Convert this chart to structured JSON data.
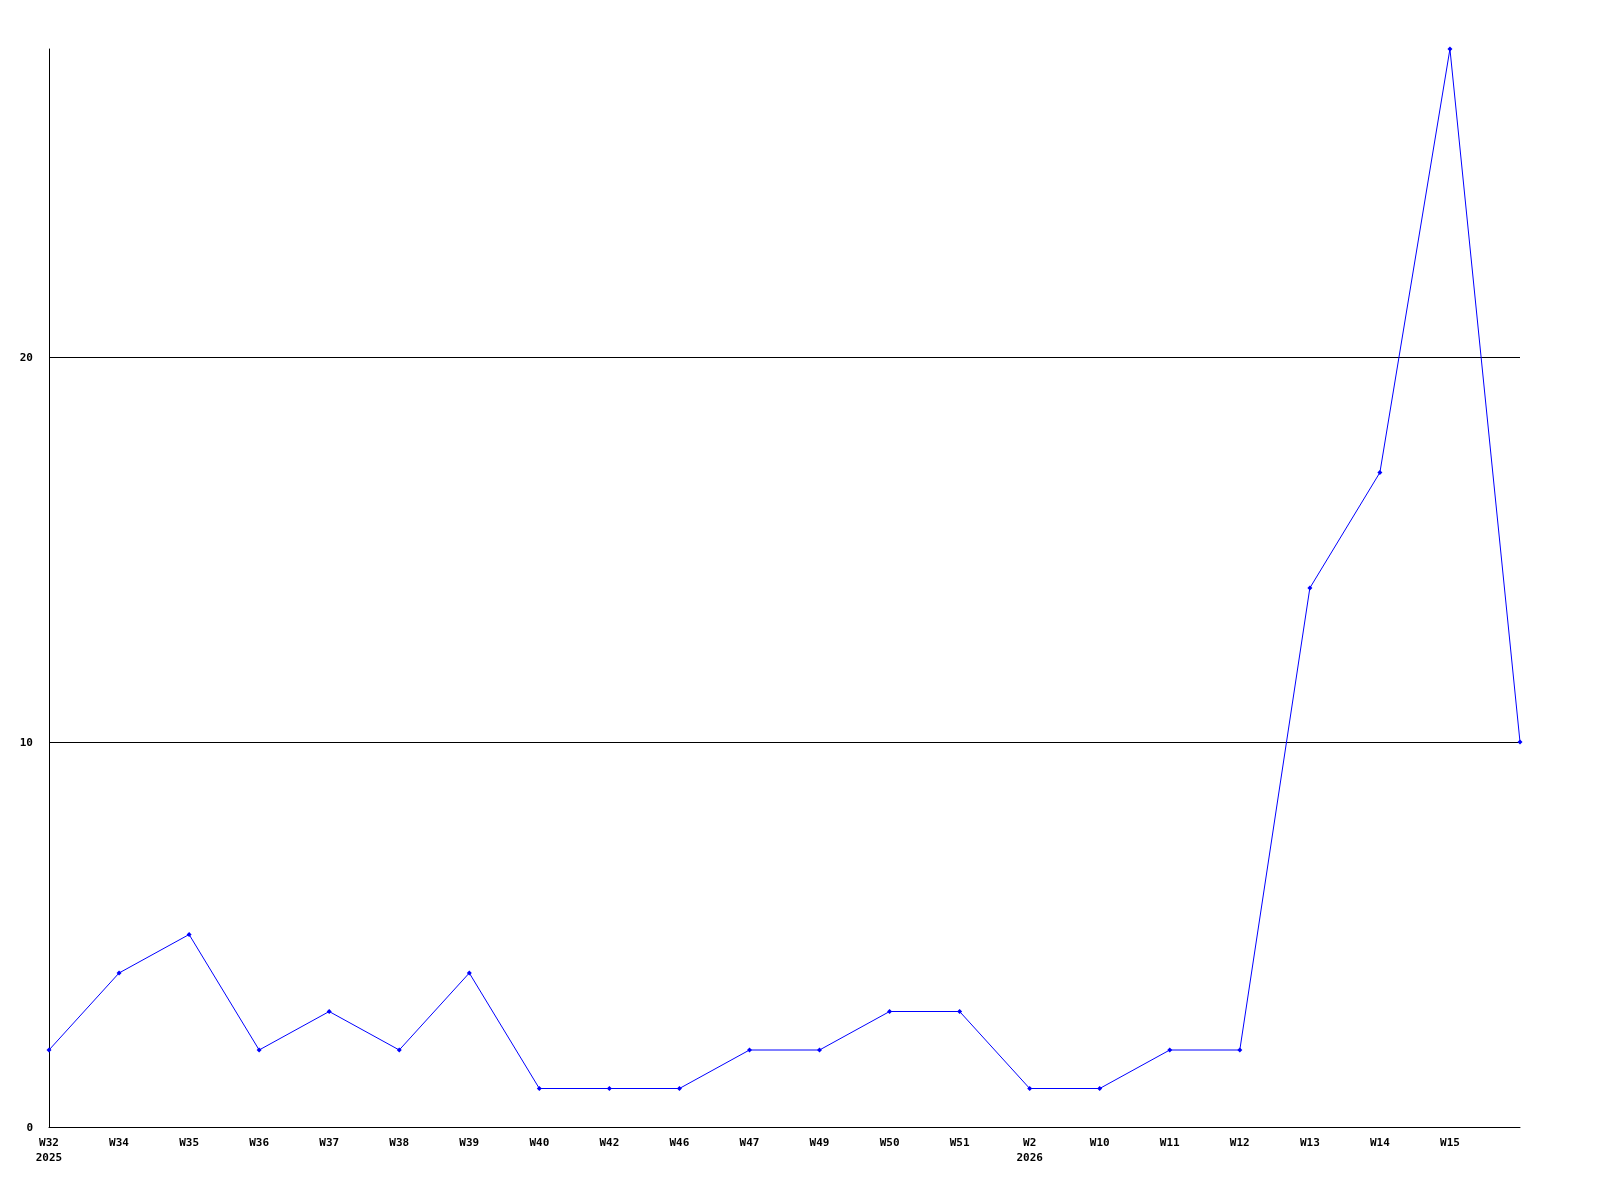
{
  "chart_data": {
    "type": "line",
    "categories": [
      "W32\n2025",
      "W34",
      "W35",
      "W36",
      "W37",
      "W38",
      "W39",
      "W40",
      "W42",
      "W46",
      "W47",
      "W49",
      "W50",
      "W51",
      "W2\n2026",
      "W10",
      "W11",
      "W12",
      "W13",
      "W14",
      "W15",
      null
    ],
    "series": [
      {
        "color": "#0000ff",
        "values": [
          2,
          4,
          5,
          2,
          3,
          2,
          4,
          1,
          1,
          1,
          2,
          2,
          3,
          3,
          1,
          1,
          2,
          2,
          14,
          17,
          28,
          10
        ]
      }
    ],
    "ylim": [
      0,
      28
    ],
    "yticks": [
      0,
      10,
      20
    ],
    "grid": "y",
    "marker": "diamond",
    "line_style": "solid"
  }
}
